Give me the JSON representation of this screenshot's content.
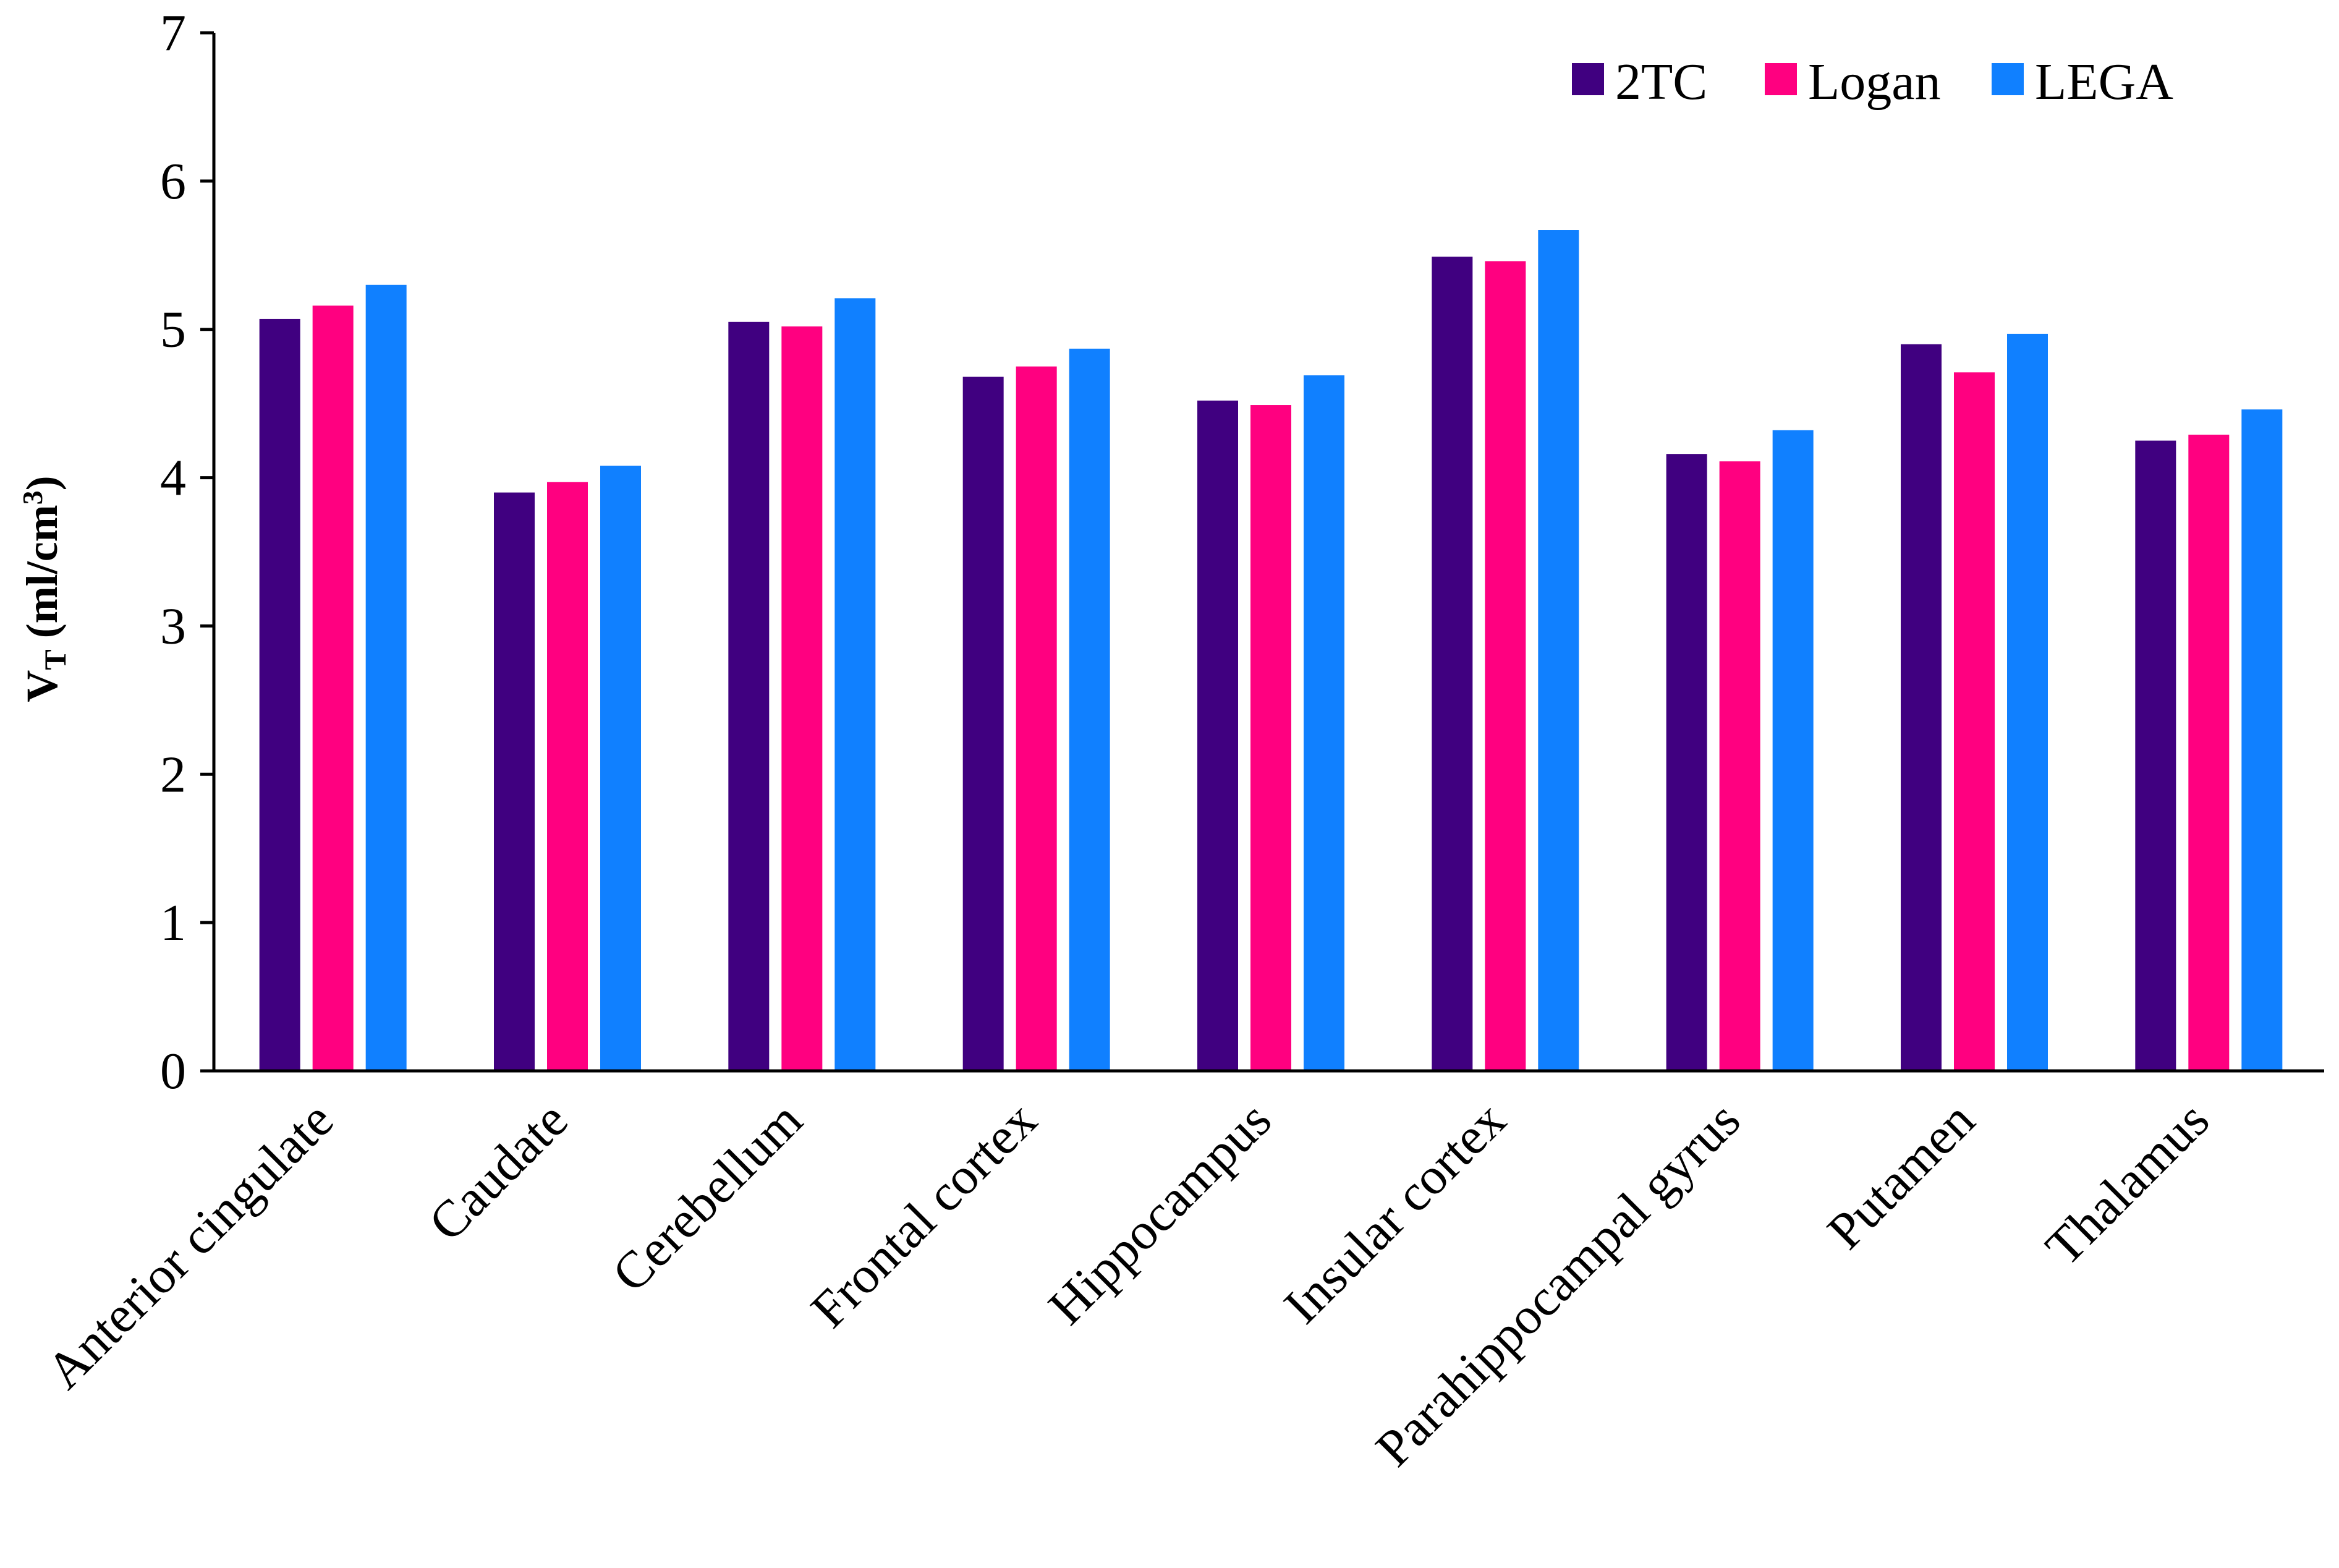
{
  "chart_data": {
    "type": "bar",
    "title": "",
    "xlabel": "",
    "ylabel": {
      "main": "V",
      "subscript": "T",
      "units_open": " (ml/cm",
      "superscript": "3",
      "units_close": ")"
    },
    "ylim": [
      0,
      7
    ],
    "yticks": [
      "0",
      "1",
      "2",
      "3",
      "4",
      "5",
      "6",
      "7"
    ],
    "grid": false,
    "legend_position": "top-right",
    "categories": [
      "Anterior cingulate",
      "Caudate",
      "Cerebellum",
      "Frontal cortex",
      "Hippocampus",
      "Insular cortex",
      "Parahippocampal gyrus",
      "Putamen",
      "Thalamus"
    ],
    "series": [
      {
        "name": "2TC",
        "color": "#400080",
        "values": [
          5.07,
          3.9,
          5.05,
          4.68,
          4.52,
          5.49,
          4.16,
          4.9,
          4.25
        ]
      },
      {
        "name": "Logan",
        "color": "#ff0080",
        "values": [
          5.16,
          3.97,
          5.02,
          4.75,
          4.49,
          5.46,
          4.11,
          4.71,
          4.29
        ]
      },
      {
        "name": "LEGA",
        "color": "#1080ff",
        "values": [
          5.3,
          4.08,
          5.21,
          4.87,
          4.69,
          5.67,
          4.32,
          4.97,
          4.46
        ]
      }
    ]
  }
}
